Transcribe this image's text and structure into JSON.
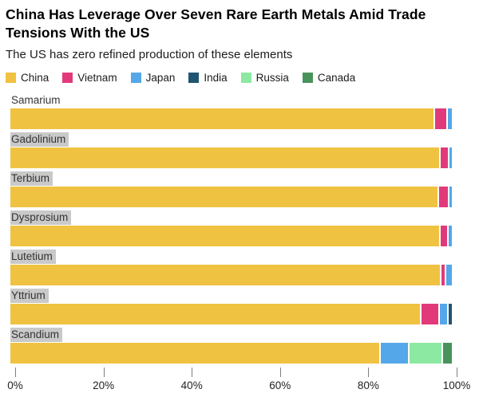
{
  "header": {
    "title": "China Has Leverage Over Seven Rare Earth Metals Amid Trade Tensions With the US",
    "subtitle": "The US has zero refined production of these elements"
  },
  "chart_data": {
    "type": "bar",
    "orientation": "horizontal",
    "stacked": true,
    "unit": "percent of refined production",
    "title": "China Has Leverage Over Seven Rare Earth Metals Amid Trade Tensions With the US",
    "subtitle": "The US has zero refined production of these elements",
    "categories": [
      "Samarium",
      "Gadolinium",
      "Terbium",
      "Dysprosium",
      "Lutetium",
      "Yttrium",
      "Scandium"
    ],
    "label_highlighted": [
      false,
      true,
      true,
      true,
      true,
      true,
      true
    ],
    "series": [
      {
        "name": "China",
        "color": "#f0c241",
        "values": [
          96.5,
          97.8,
          97.5,
          97.8,
          98.0,
          93.8,
          84.5
        ]
      },
      {
        "name": "Vietnam",
        "color": "#e13a7b",
        "values": [
          2.5,
          1.7,
          2.0,
          1.5,
          0.8,
          3.9,
          0
        ]
      },
      {
        "name": "Japan",
        "color": "#54a7e8",
        "values": [
          1.0,
          0.5,
          0.5,
          0.7,
          1.2,
          1.6,
          6.2
        ]
      },
      {
        "name": "India",
        "color": "#205571",
        "values": [
          0,
          0,
          0,
          0,
          0,
          0.7,
          0
        ]
      },
      {
        "name": "Russia",
        "color": "#8ce9a1",
        "values": [
          0,
          0,
          0,
          0,
          0,
          0,
          7.3
        ]
      },
      {
        "name": "Canada",
        "color": "#48925c",
        "values": [
          0,
          0,
          0,
          0,
          0,
          0,
          2.0
        ]
      }
    ],
    "x_ticks": [
      "0%",
      "20%",
      "40%",
      "60%",
      "80%",
      "100%"
    ],
    "xlim": [
      0,
      100
    ],
    "legend_position": "top",
    "grid": false
  },
  "colors": {
    "label_background": "#c9c9c9",
    "tick_mark": "#7f7f7f",
    "background": "#ffffff"
  }
}
